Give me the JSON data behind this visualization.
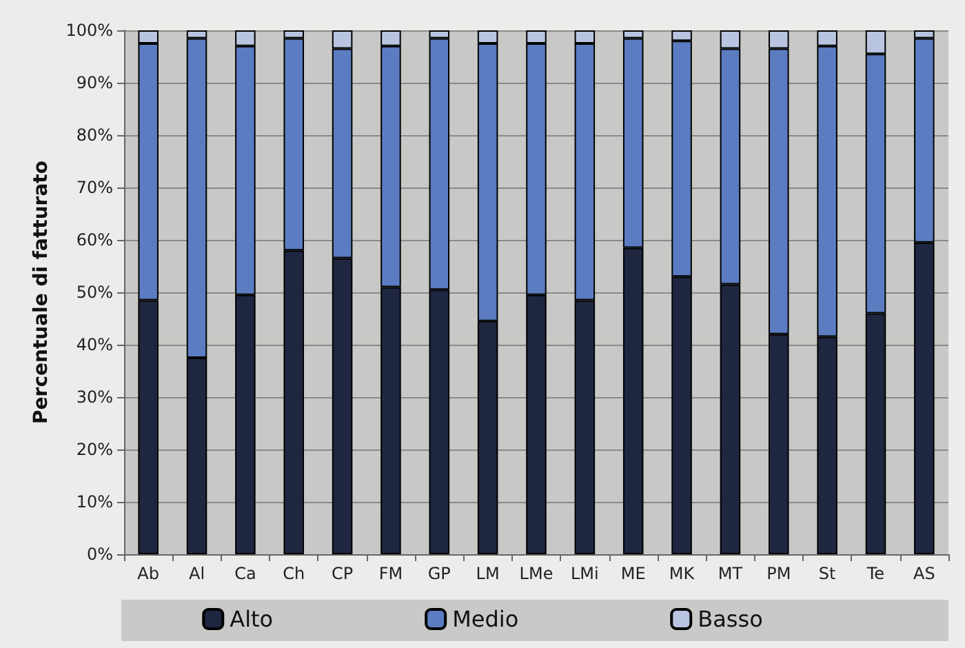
{
  "chart_data": {
    "type": "bar",
    "stacked": true,
    "ylabel": "Percentuale di fatturato",
    "categories": [
      "Ab",
      "Al",
      "Ca",
      "Ch",
      "CP",
      "FM",
      "GP",
      "LM",
      "LMe",
      "LMi",
      "ME",
      "MK",
      "MT",
      "PM",
      "St",
      "Te",
      "AS"
    ],
    "series": [
      {
        "name": "Alto",
        "color": "#1f2640",
        "values": [
          48.5,
          37.5,
          49.5,
          58,
          56.5,
          51,
          50.5,
          44.5,
          49.5,
          48.5,
          58.5,
          53,
          51.5,
          42,
          41.5,
          46,
          59.5
        ]
      },
      {
        "name": "Medio",
        "color": "#5b7cc0",
        "values": [
          49,
          61,
          47.5,
          40.5,
          40,
          46,
          48,
          53,
          48,
          49,
          40,
          45,
          45,
          54.5,
          55.5,
          49.5,
          39
        ]
      },
      {
        "name": "Basso",
        "color": "#b8c4e0",
        "values": [
          2.5,
          1.5,
          3,
          1.5,
          3.5,
          3,
          1.5,
          2.5,
          2.5,
          2.5,
          1.5,
          2,
          3.5,
          3.5,
          3,
          4.5,
          1.5
        ]
      }
    ],
    "ylim": [
      0,
      100
    ],
    "yticks": [
      {
        "value": 0,
        "label": "0%"
      },
      {
        "value": 10,
        "label": "10%"
      },
      {
        "value": 20,
        "label": "20%"
      },
      {
        "value": 30,
        "label": "30%"
      },
      {
        "value": 40,
        "label": "40%"
      },
      {
        "value": 50,
        "label": "50%"
      },
      {
        "value": 60,
        "label": "60%"
      },
      {
        "value": 70,
        "label": "70%"
      },
      {
        "value": 80,
        "label": "80%"
      },
      {
        "value": 90,
        "label": "90%"
      },
      {
        "value": 100,
        "label": "100%"
      }
    ],
    "grid": "y",
    "legend": "bottom"
  }
}
